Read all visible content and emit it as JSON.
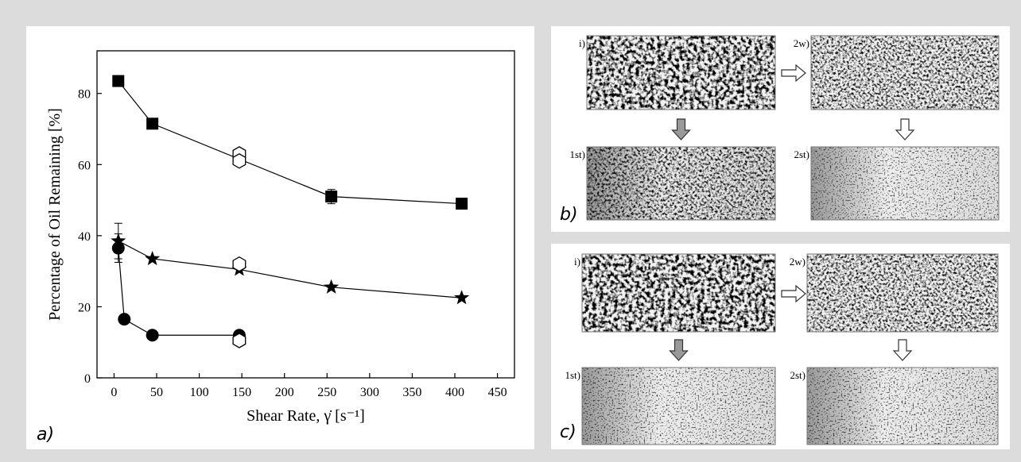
{
  "chart_data": {
    "type": "line",
    "panel_label": "a)",
    "x_label": "Shear Rate, γ̇ [s⁻¹]",
    "y_label": "Percentage of Oil Remaining [%]",
    "xlim": [
      -20,
      470
    ],
    "ylim": [
      0,
      92
    ],
    "xticks": [
      0,
      50,
      100,
      150,
      200,
      250,
      300,
      350,
      400,
      450
    ],
    "yticks": [
      0,
      20,
      40,
      60,
      80
    ],
    "series": [
      {
        "marker": "square",
        "color": "#000000",
        "x": [
          5,
          45,
          255,
          408
        ],
        "values": [
          83.5,
          71.5,
          51,
          49
        ],
        "errors": [
          null,
          null,
          2,
          null
        ],
        "connect": true
      },
      {
        "marker": "star",
        "color": "#000000",
        "x": [
          5,
          45,
          147,
          255,
          408
        ],
        "values": [
          38.5,
          33.5,
          30.5,
          25.5,
          22.5
        ],
        "errors": [
          5,
          null,
          null,
          null,
          null
        ],
        "connect": true
      },
      {
        "marker": "circle",
        "color": "#000000",
        "x": [
          5,
          12,
          45,
          147
        ],
        "values": [
          36.5,
          16.5,
          12,
          12
        ],
        "errors": [
          4,
          null,
          null,
          null
        ],
        "connect": true
      },
      {
        "marker": "hexagon-open",
        "color": "#000000",
        "x": [
          147,
          147,
          147,
          147
        ],
        "values": [
          63,
          61,
          32,
          10.5
        ],
        "errors": [
          null,
          null,
          null,
          null
        ],
        "connect": false
      }
    ]
  },
  "panels": [
    {
      "label": "b)",
      "images": [
        "i)",
        "2w)",
        "1st)",
        "2st)"
      ]
    },
    {
      "label": "c)",
      "images": [
        "i)",
        "2w)",
        "1st)",
        "2st)"
      ]
    }
  ]
}
